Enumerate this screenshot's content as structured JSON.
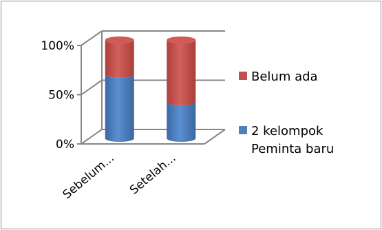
{
  "chart_data": {
    "type": "bar",
    "stacked": true,
    "percent": true,
    "style": "3d-cylinder",
    "categories": [
      "Sebelum...",
      "Setelah..."
    ],
    "series": [
      {
        "name": "2 kelompok Peminta baru",
        "color": "#4f81bd",
        "values": [
          65,
          37
        ]
      },
      {
        "name": "Belum ada",
        "color": "#c0504d",
        "values": [
          35,
          63
        ]
      }
    ],
    "y_ticks": [
      "0%",
      "50%",
      "100%"
    ],
    "ylim": [
      0,
      100
    ],
    "grid": true,
    "legend_position": "right",
    "title": "",
    "xlabel": "",
    "ylabel": ""
  },
  "legend": {
    "items": [
      {
        "lines": [
          "Belum ada"
        ],
        "color": "#c0504d"
      },
      {
        "lines": [
          "2 kelompok",
          "Peminta baru"
        ],
        "color": "#4f81bd"
      }
    ]
  }
}
